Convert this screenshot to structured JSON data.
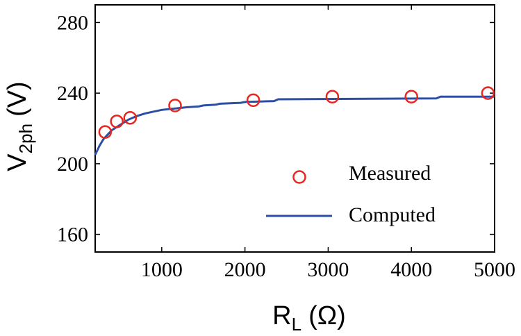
{
  "chart_data": {
    "type": "line",
    "xlabel": {
      "main": "R",
      "sub": "L",
      "unit": "(Ω)"
    },
    "ylabel": {
      "main": "V",
      "sub": "2ph",
      "unit": "(V)"
    },
    "xlim": [
      200,
      5000
    ],
    "ylim": [
      150,
      290
    ],
    "xticks": [
      1000,
      2000,
      3000,
      4000,
      5000
    ],
    "yticks": [
      160,
      200,
      240,
      280
    ],
    "legend": {
      "location": "lower-right",
      "entries": [
        "Measured",
        "Computed"
      ]
    },
    "colors": {
      "measured": "#e8251f",
      "computed": "#2c4fa3"
    },
    "series": [
      {
        "name": "Measured",
        "kind": "scatter",
        "marker": "circle",
        "x": [
          320,
          460,
          620,
          1160,
          2100,
          3050,
          4000,
          4920
        ],
        "y": [
          218,
          224,
          226,
          233,
          236,
          238,
          238,
          240
        ]
      },
      {
        "name": "Computed",
        "kind": "line",
        "x": [
          200,
          250,
          300,
          400,
          500,
          600,
          700,
          800,
          900,
          1000,
          1100,
          1200,
          1300,
          1450,
          1500,
          1650,
          1700,
          1950,
          2000,
          2350,
          2400,
          4300,
          4350,
          5000
        ],
        "y": [
          205,
          210,
          214,
          219,
          222,
          225,
          227,
          228.5,
          229.5,
          230.5,
          231,
          231.5,
          232,
          232.5,
          233,
          233.5,
          234,
          234.5,
          235,
          235.5,
          236.5,
          237,
          238,
          238
        ]
      }
    ]
  }
}
